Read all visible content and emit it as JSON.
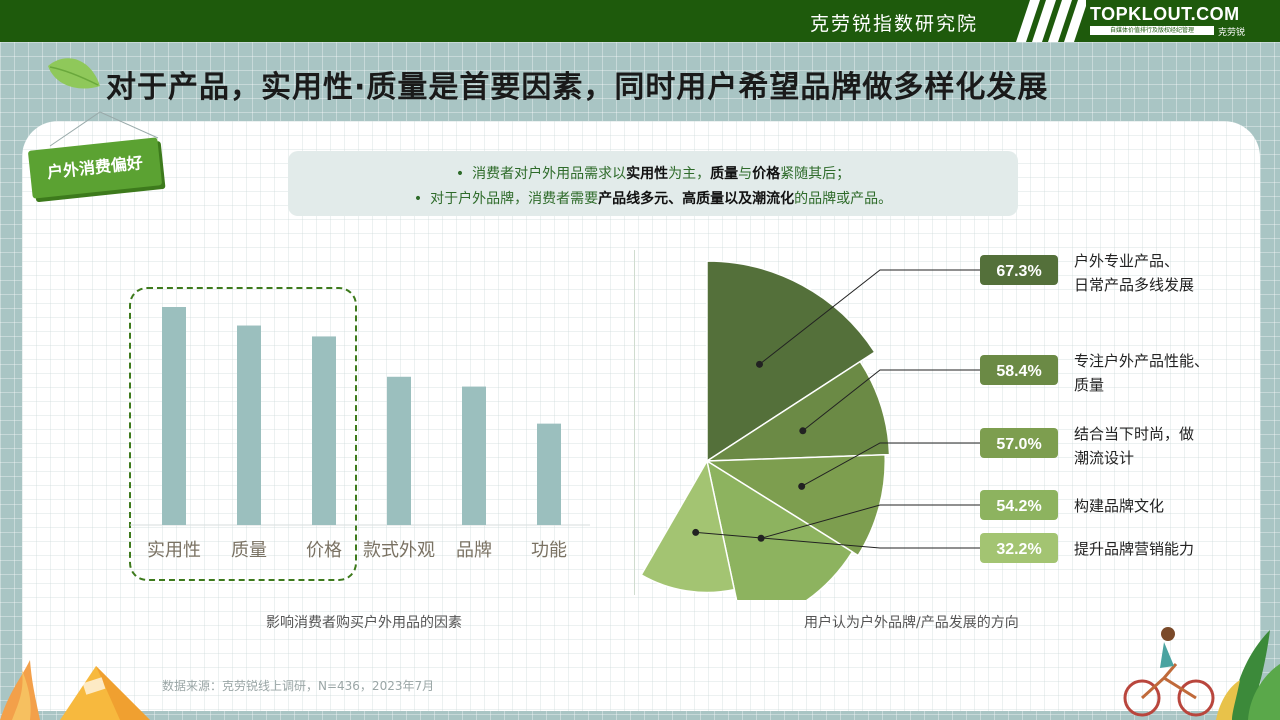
{
  "header": {
    "org_name": "克劳锐指数研究院",
    "logo_text": "TOPKLOUT.COM",
    "logo_subtext": "自媒体价值排行及版权经纪管理",
    "logo_cn": "克劳锐"
  },
  "title": "对于产品，实用性·质量是首要因素，同时用户希望品牌做多样化发展",
  "tag": "户外消费偏好",
  "summary": {
    "line1": [
      {
        "t": "消费者对户外用品需求以",
        "b": false
      },
      {
        "t": "实用性",
        "b": true
      },
      {
        "t": "为主，",
        "b": false
      },
      {
        "t": "质量",
        "b": true
      },
      {
        "t": "与",
        "b": false
      },
      {
        "t": "价格",
        "b": true
      },
      {
        "t": "紧随其后；",
        "b": false
      }
    ],
    "line2": [
      {
        "t": "对于户外品牌，消费者需要",
        "b": false
      },
      {
        "t": "产品线多元、高质量以及潮流化",
        "b": true
      },
      {
        "t": "的品牌或产品。",
        "b": false
      }
    ]
  },
  "chart_data": [
    {
      "type": "bar",
      "categories": [
        "实用性",
        "质量",
        "价格",
        "款式外观",
        "品牌",
        "功能"
      ],
      "values": [
        100,
        91.5,
        86.5,
        68,
        63.5,
        46.5
      ],
      "highlight": [
        "实用性",
        "质量",
        "价格"
      ],
      "title": "影响消费者购买户外用品的因素",
      "color": "#9bbfbe",
      "ylim": [
        0,
        100
      ]
    },
    {
      "type": "pie",
      "title": "用户认为户外品牌/产品发展的方向",
      "categories": [
        "户外专业产品、日常产品多线发展",
        "专注户外产品性能、质量",
        "结合当下时尚，做潮流设计",
        "构建品牌文化",
        "提升品牌营销能力"
      ],
      "label_lines": [
        [
          "户外专业产品、",
          "日常产品多线发展"
        ],
        [
          "专注户外产品性能、",
          "质量"
        ],
        [
          "结合当下时尚，做",
          "潮流设计"
        ],
        [
          "构建品牌文化"
        ],
        [
          "提升品牌营销能力"
        ]
      ],
      "values": [
        67.3,
        58.4,
        57.0,
        54.2,
        32.2
      ],
      "value_labels": [
        "67.3%",
        "58.4%",
        "57.0%",
        "54.2%",
        "32.2%"
      ],
      "colors": [
        "#54703a",
        "#6b8a45",
        "#7d9e4f",
        "#8db35f",
        "#a3c472"
      ],
      "badge_colors": [
        "#54703a",
        "#6b8a45",
        "#7d9e4f",
        "#8db35f",
        "#a3c472"
      ]
    }
  ],
  "source": "数据来源：克劳锐线上调研，N=436，2023年7月"
}
